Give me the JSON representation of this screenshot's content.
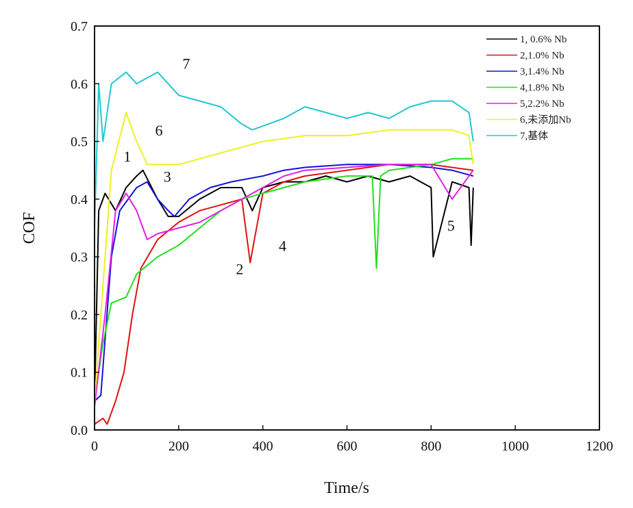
{
  "chart_data": {
    "type": "line",
    "xlabel": "Time/s",
    "ylabel": "COF",
    "xlim": [
      0,
      1200
    ],
    "ylim": [
      0,
      0.7
    ],
    "xticks": [
      0,
      200,
      400,
      600,
      800,
      1000,
      1200
    ],
    "yticks": [
      "0.0",
      "0.1",
      "0.2",
      "0.3",
      "0.4",
      "0.5",
      "0.6",
      "0.7"
    ],
    "grid": false,
    "legend_position": "top-right",
    "series": [
      {
        "name": "1, 0.6% Nb",
        "color": "#000000",
        "label": "1",
        "x": [
          0,
          10,
          25,
          50,
          75,
          100,
          115,
          150,
          175,
          200,
          250,
          300,
          350,
          375,
          400,
          450,
          500,
          550,
          600,
          650,
          700,
          750,
          800,
          805,
          850,
          890,
          895,
          900
        ],
        "y": [
          0.05,
          0.38,
          0.41,
          0.38,
          0.42,
          0.44,
          0.45,
          0.4,
          0.37,
          0.37,
          0.4,
          0.42,
          0.42,
          0.38,
          0.42,
          0.43,
          0.43,
          0.44,
          0.43,
          0.44,
          0.43,
          0.44,
          0.42,
          0.3,
          0.43,
          0.42,
          0.32,
          0.42
        ]
      },
      {
        "name": "2,1.0% Nb",
        "color": "#e01010",
        "label": "2",
        "x": [
          0,
          20,
          30,
          50,
          70,
          90,
          110,
          150,
          200,
          250,
          300,
          350,
          370,
          400,
          450,
          500,
          600,
          700,
          800,
          900
        ],
        "y": [
          0.01,
          0.02,
          0.01,
          0.05,
          0.1,
          0.2,
          0.28,
          0.33,
          0.36,
          0.38,
          0.39,
          0.4,
          0.29,
          0.41,
          0.43,
          0.44,
          0.45,
          0.46,
          0.46,
          0.45
        ]
      },
      {
        "name": "3,1.4% Nb",
        "color": "#1010e0",
        "label": "3",
        "x": [
          0,
          15,
          40,
          60,
          80,
          100,
          125,
          150,
          175,
          190,
          225,
          275,
          325,
          400,
          450,
          500,
          600,
          700,
          800,
          850,
          900
        ],
        "y": [
          0.05,
          0.06,
          0.3,
          0.38,
          0.4,
          0.42,
          0.43,
          0.4,
          0.38,
          0.37,
          0.4,
          0.42,
          0.43,
          0.44,
          0.45,
          0.455,
          0.46,
          0.46,
          0.455,
          0.45,
          0.44
        ]
      },
      {
        "name": "4,1.8% Nb",
        "color": "#20e020",
        "label": "4",
        "x": [
          0,
          20,
          40,
          75,
          100,
          150,
          200,
          250,
          300,
          350,
          400,
          450,
          500,
          600,
          660,
          670,
          680,
          700,
          800,
          850,
          900
        ],
        "y": [
          0.05,
          0.15,
          0.22,
          0.23,
          0.27,
          0.3,
          0.32,
          0.35,
          0.38,
          0.4,
          0.41,
          0.42,
          0.43,
          0.44,
          0.44,
          0.28,
          0.44,
          0.45,
          0.46,
          0.47,
          0.47
        ]
      },
      {
        "name": "5,2.2% Nb",
        "color": "#e020e0",
        "label": "5",
        "x": [
          0,
          25,
          50,
          75,
          100,
          125,
          150,
          200,
          250,
          300,
          350,
          400,
          450,
          500,
          600,
          700,
          800,
          850,
          900
        ],
        "y": [
          0.04,
          0.2,
          0.38,
          0.41,
          0.38,
          0.33,
          0.34,
          0.35,
          0.36,
          0.38,
          0.4,
          0.42,
          0.44,
          0.45,
          0.455,
          0.46,
          0.46,
          0.4,
          0.45
        ]
      },
      {
        "name": "6,未添加Nb",
        "color": "#f0f020",
        "label": "6",
        "x": [
          0,
          25,
          40,
          75,
          100,
          125,
          175,
          200,
          250,
          300,
          350,
          400,
          450,
          500,
          600,
          700,
          800,
          850,
          890,
          900
        ],
        "y": [
          0.05,
          0.3,
          0.45,
          0.55,
          0.5,
          0.46,
          0.46,
          0.46,
          0.47,
          0.48,
          0.49,
          0.5,
          0.505,
          0.51,
          0.51,
          0.52,
          0.52,
          0.52,
          0.51,
          0.46
        ]
      },
      {
        "name": "7,基体",
        "color": "#20c8d0",
        "label": "7",
        "x": [
          0,
          10,
          20,
          40,
          75,
          100,
          150,
          200,
          250,
          300,
          350,
          375,
          450,
          500,
          550,
          600,
          650,
          700,
          750,
          800,
          850,
          890,
          900
        ],
        "y": [
          0.35,
          0.6,
          0.5,
          0.6,
          0.62,
          0.6,
          0.62,
          0.58,
          0.57,
          0.56,
          0.53,
          0.52,
          0.54,
          0.56,
          0.55,
          0.54,
          0.55,
          0.54,
          0.56,
          0.57,
          0.57,
          0.55,
          0.5
        ]
      }
    ],
    "annotations": [
      {
        "text": "7",
        "x": 218,
        "y": 0.626
      },
      {
        "text": "6",
        "x": 153,
        "y": 0.51
      },
      {
        "text": "1",
        "x": 78,
        "y": 0.465
      },
      {
        "text": "3",
        "x": 173,
        "y": 0.43
      },
      {
        "text": "2",
        "x": 345,
        "y": 0.27
      },
      {
        "text": "4",
        "x": 447,
        "y": 0.31
      },
      {
        "text": "5",
        "x": 847,
        "y": 0.345
      }
    ]
  }
}
